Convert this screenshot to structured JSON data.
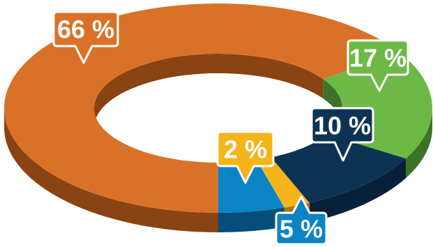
{
  "chart_data": {
    "type": "pie",
    "style": "3d-donut",
    "title": "",
    "slices": [
      {
        "label": "66 %",
        "value": 66,
        "color": "#D97228",
        "side": "#8A4312"
      },
      {
        "label": "17 %",
        "value": 17,
        "color": "#6DB945",
        "side": "#3C7326"
      },
      {
        "label": "10 %",
        "value": 10,
        "color": "#0D3354",
        "side": "#07213A"
      },
      {
        "label": "2 %",
        "value": 2,
        "color": "#F4B41A",
        "side": "#A5780A"
      },
      {
        "label": "5 %",
        "value": 5,
        "color": "#0B84C6",
        "side": "#064E7A"
      }
    ],
    "legend": "none"
  }
}
